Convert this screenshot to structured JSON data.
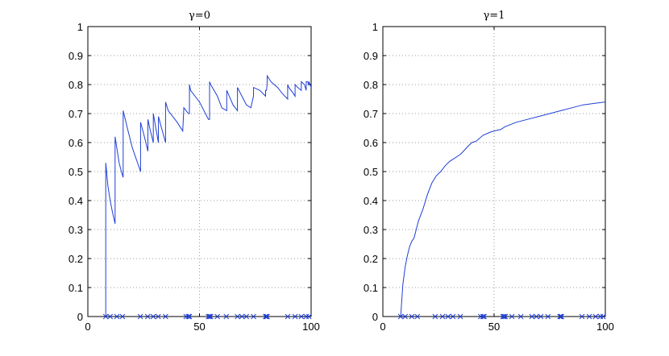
{
  "chart_data": [
    {
      "type": "line",
      "title": "γ=0",
      "xlabel": "",
      "ylabel": "",
      "xlim": [
        0,
        100
      ],
      "ylim": [
        0,
        1
      ],
      "xticks": [
        0,
        50,
        100
      ],
      "yticks": [
        0,
        0.1,
        0.2,
        0.3,
        0.4,
        0.5,
        0.6,
        0.7,
        0.8,
        0.9,
        1
      ],
      "grid": true,
      "color": "#1f3fd6",
      "series": [
        {
          "x": [
            8,
            8,
            8.01,
            9,
            10,
            11,
            12.2,
            12.21,
            13,
            14,
            15,
            15.8,
            15.81,
            18,
            20,
            23.6,
            23.61,
            25,
            26.9,
            26.91,
            28,
            29.3,
            29.31,
            30,
            31.6,
            31.61,
            33,
            34.8,
            34.81,
            36,
            38,
            40,
            42.5,
            43,
            44,
            44.01,
            45,
            45.5,
            45.51,
            46,
            50,
            54,
            54.5,
            54.51,
            55,
            58,
            60,
            62.2,
            62.21,
            65,
            67,
            67.01,
            69,
            71,
            73,
            74.2,
            74.21,
            77,
            79.6,
            79.61,
            80,
            80.3,
            80.31,
            82,
            85,
            87,
            89.5,
            89.51,
            90,
            92,
            92.8,
            92.81,
            94,
            95.6,
            95.61,
            97,
            97.8,
            97.81,
            98.5,
            99,
            99.01,
            100
          ],
          "y": [
            0,
            0.53,
            0.53,
            0.45,
            0.4,
            0.36,
            0.32,
            0.62,
            0.58,
            0.53,
            0.5,
            0.48,
            0.71,
            0.64,
            0.58,
            0.5,
            0.67,
            0.63,
            0.57,
            0.68,
            0.64,
            0.6,
            0.7,
            0.67,
            0.6,
            0.69,
            0.65,
            0.6,
            0.74,
            0.71,
            0.69,
            0.67,
            0.64,
            0.72,
            0.71,
            0.71,
            0.7,
            0.7,
            0.8,
            0.78,
            0.74,
            0.68,
            0.68,
            0.81,
            0.8,
            0.76,
            0.72,
            0.71,
            0.78,
            0.73,
            0.71,
            0.79,
            0.76,
            0.73,
            0.72,
            0.76,
            0.79,
            0.78,
            0.76,
            0.78,
            0.78,
            0.8,
            0.83,
            0.81,
            0.79,
            0.77,
            0.75,
            0.8,
            0.79,
            0.77,
            0.76,
            0.8,
            0.79,
            0.78,
            0.81,
            0.8,
            0.78,
            0.81,
            0.81,
            0.8,
            0.81,
            0.79
          ],
          "markers_x": [
            8,
            10,
            13,
            15.5,
            23.5,
            26.8,
            29.3,
            31.5,
            34.8,
            44,
            45,
            45.5,
            54,
            54.5,
            55,
            58,
            62,
            67,
            69,
            71,
            74.2,
            79.6,
            80,
            80.3,
            89.5,
            92.8,
            95.6,
            97.8,
            99
          ]
        }
      ]
    },
    {
      "type": "line",
      "title": "γ=1",
      "xlabel": "",
      "ylabel": "",
      "xlim": [
        0,
        100
      ],
      "ylim": [
        0,
        1
      ],
      "xticks": [
        0,
        50,
        100
      ],
      "yticks": [
        0,
        0.1,
        0.2,
        0.3,
        0.4,
        0.5,
        0.6,
        0.7,
        0.8,
        0.9,
        1
      ],
      "grid": true,
      "color": "#1f3fd6",
      "series": [
        {
          "x": [
            8,
            9,
            10,
            11,
            12,
            13,
            14,
            15,
            16,
            18,
            20,
            22,
            24,
            26,
            28,
            30,
            32,
            35,
            38,
            40,
            42,
            45,
            48,
            50,
            53,
            55,
            60,
            65,
            70,
            75,
            80,
            85,
            90,
            95,
            100
          ],
          "y": [
            0,
            0.11,
            0.17,
            0.21,
            0.24,
            0.26,
            0.27,
            0.3,
            0.33,
            0.37,
            0.42,
            0.46,
            0.485,
            0.5,
            0.52,
            0.535,
            0.545,
            0.56,
            0.585,
            0.6,
            0.605,
            0.625,
            0.635,
            0.64,
            0.645,
            0.655,
            0.67,
            0.68,
            0.69,
            0.7,
            0.71,
            0.72,
            0.73,
            0.735,
            0.74
          ],
          "markers_x": [
            8,
            10,
            13,
            15.5,
            23.5,
            26.8,
            29.3,
            31.5,
            34.8,
            44,
            45,
            45.5,
            54,
            54.5,
            55,
            58,
            62,
            67,
            69,
            71,
            74.2,
            79.6,
            80,
            80.3,
            89.5,
            92.8,
            95.6,
            97.8,
            99
          ]
        }
      ]
    }
  ]
}
